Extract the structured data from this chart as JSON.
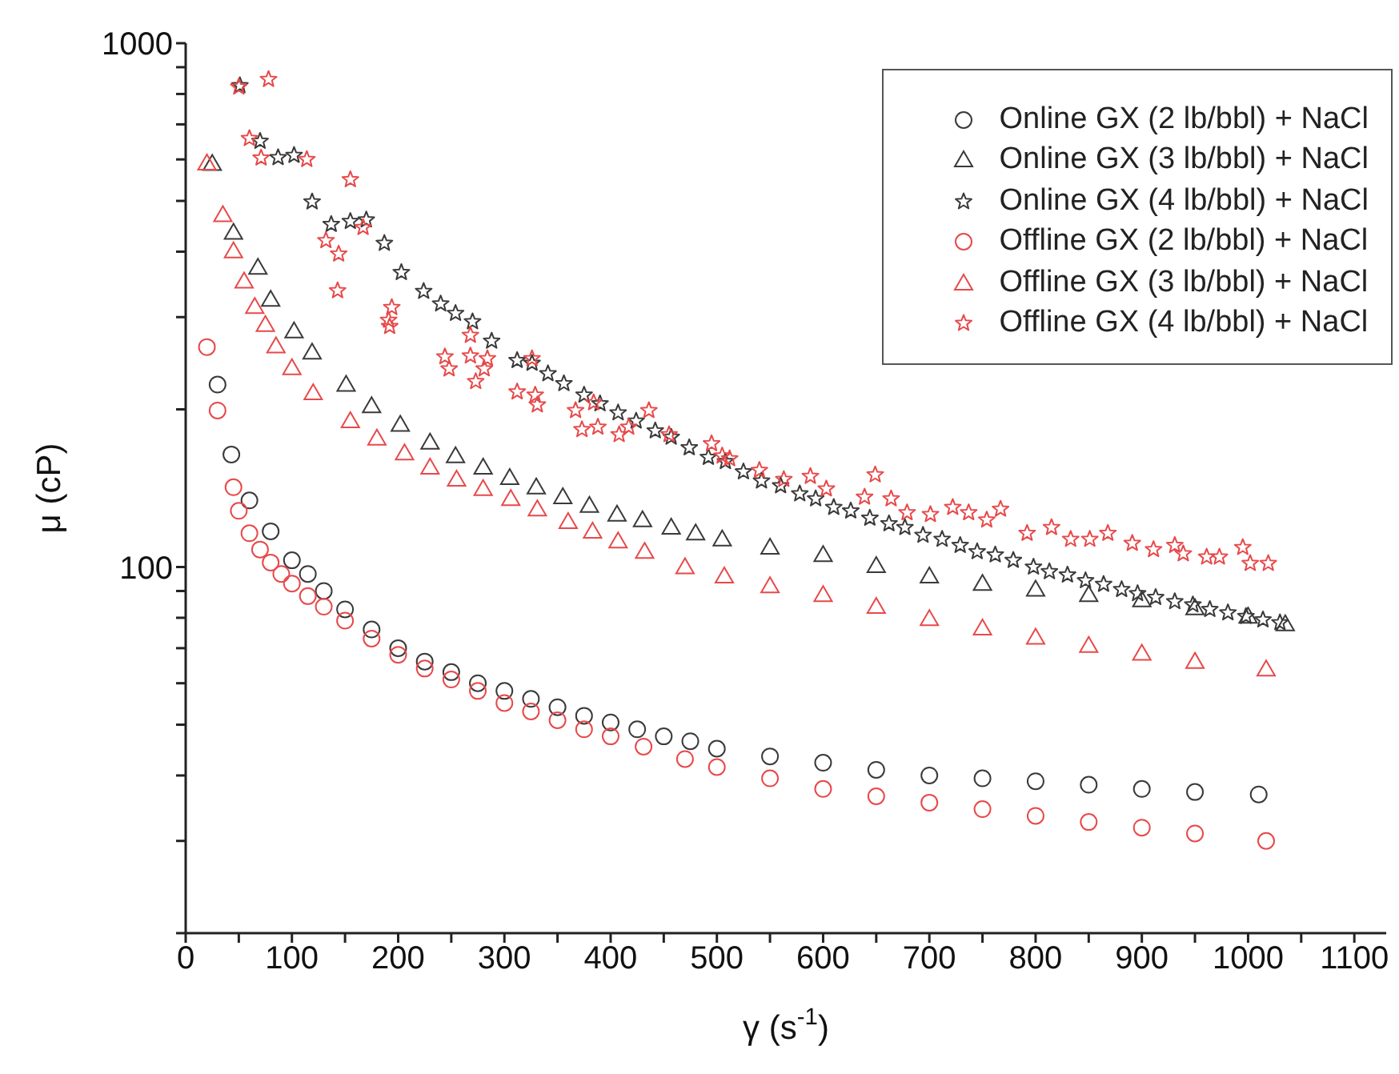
{
  "chart_data": {
    "type": "scatter",
    "xlabel": "γ (s$^{-1}$)",
    "ylabel": "μ (cP)",
    "log": "y",
    "legend": "top right",
    "xlim": [
      0,
      1130
    ],
    "xticks": [
      0,
      {
        "value": 50,
        "label": null
      },
      100,
      {
        "value": 150,
        "label": null
      },
      200,
      {
        "value": 250,
        "label": null
      },
      300,
      {
        "value": 350,
        "label": null
      },
      400,
      {
        "value": 450,
        "label": null
      },
      500,
      {
        "value": 550,
        "label": null
      },
      600,
      {
        "value": 650,
        "label": null
      },
      700,
      {
        "value": 750,
        "label": null
      },
      800,
      {
        "value": 850,
        "label": null
      },
      900,
      {
        "value": 950,
        "label": null
      },
      1000,
      {
        "value": 1050,
        "label": null
      },
      1100
    ],
    "ylim": [
      20,
      1000
    ],
    "yticks": [
      {
        "value": 20,
        "label": null
      },
      {
        "value": 30,
        "label": null
      },
      {
        "value": 40,
        "label": null
      },
      {
        "value": 50,
        "label": null
      },
      {
        "value": 60,
        "label": null
      },
      {
        "value": 70,
        "label": null
      },
      {
        "value": 80,
        "label": null
      },
      {
        "value": 90,
        "label": null
      },
      100,
      {
        "value": 200,
        "label": null
      },
      {
        "value": 300,
        "label": null
      },
      {
        "value": 400,
        "label": null
      },
      {
        "value": 500,
        "label": null
      },
      {
        "value": 600,
        "label": null
      },
      {
        "value": 700,
        "label": null
      },
      {
        "value": 800,
        "label": null
      },
      {
        "value": 900,
        "label": null
      },
      1000
    ],
    "series": [
      {
        "name": "Online GX (2 lb/bbl) + NaCl",
        "color": "#3a3a3a",
        "marker": "circle",
        "x": [
          30,
          43,
          60,
          80,
          100,
          115,
          130,
          150,
          175,
          200,
          225,
          250,
          275,
          300,
          325,
          350,
          375,
          400,
          425,
          450,
          475,
          500,
          550,
          600,
          650,
          700,
          750,
          800,
          850,
          900,
          950,
          1010
        ],
        "values": [
          223,
          164,
          134,
          117,
          103,
          97,
          90,
          83,
          76,
          70,
          66,
          63,
          60,
          58,
          56,
          54,
          52,
          50.5,
          49,
          47.5,
          46.5,
          45,
          43.5,
          42.3,
          41,
          40,
          39.5,
          39,
          38.4,
          37.7,
          37.2,
          36.8
        ]
      },
      {
        "name": "Online GX (3 lb/bbl) + NaCl",
        "color": "#3a3a3a",
        "marker": "triangle",
        "x": [
          25,
          45,
          68,
          80,
          102,
          119,
          151,
          175,
          202,
          230,
          254,
          280,
          305,
          330,
          355,
          380,
          406,
          430,
          457,
          480,
          505,
          550,
          600,
          650,
          700,
          750,
          800,
          850,
          900,
          950,
          1000,
          1035
        ],
        "values": [
          589,
          435,
          373,
          324,
          282,
          257,
          223,
          203,
          187,
          173,
          163,
          155,
          148,
          142,
          136,
          131,
          126,
          123,
          119,
          116,
          113,
          109,
          105.5,
          100.5,
          96,
          93,
          90.6,
          88.5,
          86.5,
          83.5,
          80.5,
          77.8
        ]
      },
      {
        "name": "Online GX (4 lb/bbl) + NaCl",
        "color": "#3a3a3a",
        "marker": "star",
        "x": [
          51,
          70,
          87,
          102,
          119,
          137,
          155,
          170,
          187,
          203,
          224,
          240,
          254,
          270,
          288,
          312,
          326,
          341,
          356,
          375,
          390,
          407,
          424,
          442,
          457,
          474,
          492,
          508,
          525,
          542,
          560,
          578,
          593,
          610,
          626,
          644,
          662,
          677,
          694,
          712,
          729,
          745,
          762,
          779,
          798,
          813,
          830,
          847,
          864,
          881,
          896,
          913,
          931,
          948,
          964,
          981,
          998,
          1014,
          1030
        ],
        "values": [
          830,
          650,
          605,
          611,
          498,
          451,
          457,
          460,
          415,
          365,
          336,
          318,
          305,
          294,
          270,
          248,
          245,
          234,
          224,
          213,
          205,
          197,
          190,
          182,
          177,
          169,
          162,
          159,
          152,
          146,
          143,
          138,
          135,
          130,
          128,
          124,
          121,
          119,
          115,
          113,
          110,
          107,
          105.5,
          103,
          100,
          98,
          96.6,
          94.2,
          92.7,
          90.6,
          89,
          87.5,
          85.9,
          84.7,
          83,
          81.8,
          80.5,
          79.3,
          78.3
        ]
      },
      {
        "name": "Offline GX (2 lb/bbl) + NaCl",
        "color": "#e8494a",
        "marker": "circle",
        "x": [
          20,
          30,
          45,
          50,
          60,
          70,
          80,
          90,
          100,
          115,
          130,
          150,
          175,
          200,
          225,
          250,
          275,
          300,
          325,
          350,
          375,
          400,
          431,
          470,
          500,
          550,
          600,
          650,
          700,
          750,
          800,
          850,
          900,
          950,
          1017
        ],
        "values": [
          263,
          199,
          142,
          128,
          116,
          108,
          102,
          97,
          93,
          88,
          84,
          79,
          73,
          68,
          64,
          61,
          58,
          55,
          53,
          51,
          49,
          47.5,
          45.4,
          43,
          41.5,
          39.5,
          37.7,
          36.5,
          35.5,
          34.5,
          33.5,
          32.6,
          31.8,
          31,
          30
        ]
      },
      {
        "name": "Offline GX (3 lb/bbl) + NaCl",
        "color": "#e8494a",
        "marker": "triangle",
        "x": [
          20,
          35,
          45,
          55,
          65,
          75,
          85,
          100,
          120,
          155,
          180,
          206,
          230,
          255,
          280,
          306,
          331,
          360,
          383,
          407,
          432,
          470,
          507,
          550,
          600,
          650,
          700,
          750,
          800,
          850,
          900,
          950,
          1017
        ],
        "values": [
          590,
          470,
          401,
          351,
          314,
          290,
          264,
          240,
          215,
          190,
          176,
          165,
          155,
          147,
          141,
          135,
          129,
          122,
          117,
          112,
          107,
          100,
          96,
          92,
          88.5,
          84,
          79.6,
          76.4,
          73.4,
          70.8,
          68.4,
          66,
          63.8
        ]
      },
      {
        "name": "Offline GX (4 lb/bbl) + NaCl",
        "color": "#e8494a",
        "marker": "star",
        "x": [
          50,
          78,
          60,
          71,
          114,
          155,
          132,
          144,
          167,
          143,
          194,
          191,
          192,
          244,
          248,
          268,
          268,
          273,
          281,
          284,
          312,
          326,
          329,
          331,
          367,
          373,
          384,
          388,
          408,
          417,
          436,
          455,
          495,
          505,
          512,
          540,
          563,
          588,
          603,
          639,
          649,
          664,
          679,
          701,
          722,
          737,
          754,
          767,
          792,
          815,
          833,
          851,
          868,
          891,
          911,
          931,
          939,
          961,
          973,
          995,
          1002,
          1019
        ],
        "values": [
          825,
          853,
          658,
          604,
          600,
          549,
          420,
          396,
          445,
          337,
          313,
          296,
          288,
          252,
          239,
          277,
          253,
          226,
          239,
          250,
          216,
          250,
          213,
          204,
          199,
          183,
          206,
          185,
          179,
          185,
          199,
          179,
          172,
          163,
          161,
          153,
          147,
          149,
          141,
          136,
          150,
          135,
          127,
          126,
          130,
          127,
          123,
          129,
          116,
          119,
          113,
          113,
          116,
          111,
          108,
          110,
          106,
          104.5,
          104.5,
          109,
          101.6,
          101.6
        ]
      }
    ]
  }
}
